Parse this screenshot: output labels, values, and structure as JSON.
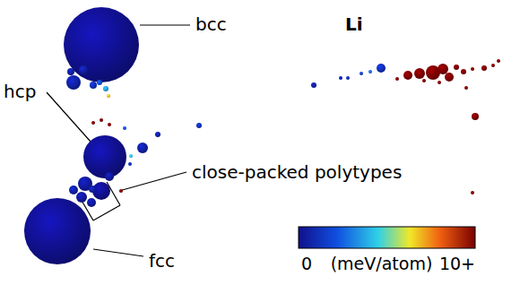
{
  "chart_data": {
    "type": "scatter",
    "title": "Li",
    "x": [
      11.3,
      8.2,
      9.3,
      7.9,
      10.4,
      11.1,
      11.8,
      12.1,
      10.4,
      11.3,
      12.2,
      13.9,
      17.6,
      22.2,
      11.7,
      15.9,
      14.6,
      14.5,
      11.3,
      9.5,
      9.1,
      10.3,
      8.2,
      12.2,
      10.2,
      13.5,
      6.4,
      35.0,
      38.0,
      38.8,
      40.3,
      41.3,
      42.5,
      44.3,
      45.5,
      46.8,
      48.3,
      49.4,
      50.1,
      50.9,
      51.7,
      52.7,
      54.0,
      55.0,
      55.6,
      52.0,
      53.0,
      52.7,
      47.3,
      49.0
    ],
    "y": [
      26.8,
      22.6,
      24.0,
      23.8,
      22.3,
      22.6,
      21.9,
      21.1,
      18.1,
      18.4,
      17.9,
      17.5,
      16.8,
      17.8,
      14.3,
      15.3,
      14.4,
      13.5,
      10.5,
      11.3,
      9.8,
      10.7,
      10.6,
      12.1,
      9.2,
      10.5,
      6.0,
      22.3,
      23.1,
      23.1,
      23.6,
      23.8,
      24.2,
      23.0,
      23.4,
      23.6,
      23.7,
      24.1,
      23.2,
      24.3,
      23.8,
      24.1,
      24.2,
      24.5,
      25.0,
      22.0,
      18.8,
      10.3,
      22.8,
      22.6
    ],
    "sizes": [
      4.2,
      0.8,
      0.5,
      0.4,
      0.4,
      0.3,
      0.3,
      0.2,
      0.2,
      0.2,
      0.2,
      0.2,
      0.3,
      0.3,
      2.4,
      0.6,
      0.2,
      0.2,
      1.0,
      0.8,
      0.6,
      0.4,
      0.5,
      0.5,
      0.5,
      0.2,
      3.7,
      0.3,
      0.2,
      0.2,
      0.2,
      0.2,
      0.5,
      0.2,
      0.5,
      0.6,
      0.8,
      0.6,
      0.5,
      0.3,
      0.3,
      0.2,
      0.3,
      0.2,
      0.2,
      0.2,
      0.4,
      0.2,
      0.2,
      0.2
    ],
    "energy": [
      0,
      0.5,
      0.5,
      0.5,
      1,
      2,
      3.5,
      7,
      10,
      10,
      10,
      2,
      0.5,
      1,
      0,
      0.5,
      4,
      1,
      0,
      0.3,
      0.3,
      0.5,
      0.5,
      0.3,
      0.3,
      10,
      0,
      0.5,
      0.5,
      1,
      1.5,
      2.5,
      1,
      10,
      10,
      10,
      10,
      10,
      10,
      10,
      10,
      10,
      10,
      10,
      10,
      10,
      10,
      10,
      10,
      10
    ],
    "xlim": [
      0,
      58
    ],
    "ylim": [
      0,
      31.8
    ],
    "tick_labels": false,
    "colorbar": {
      "label": "(meV/atom)",
      "range": [
        0,
        10
      ],
      "ticks": [
        0,
        {
          "value": 10,
          "label": "10+"
        }
      ]
    },
    "annotations": [
      {
        "text": "bcc"
      },
      {
        "text": "hcp"
      },
      {
        "text": "close-packed polytypes"
      },
      {
        "text": "fcc"
      }
    ]
  }
}
